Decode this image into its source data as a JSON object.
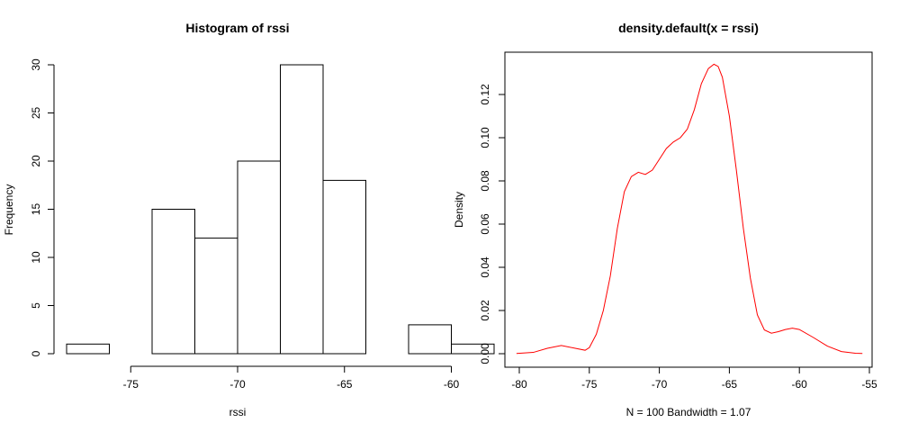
{
  "chart_data": [
    {
      "type": "histogram",
      "title": "Histogram of rssi",
      "xlabel": "rssi",
      "ylabel": "Frequency",
      "xlim": [
        -78,
        -62
      ],
      "ylim": [
        0,
        30
      ],
      "x_ticks": [
        -75,
        -70,
        -65,
        -60
      ],
      "y_ticks": [
        0,
        5,
        10,
        15,
        20,
        25,
        30
      ],
      "bins": [
        {
          "from": -78,
          "to": -76,
          "count": 1
        },
        {
          "from": -76,
          "to": -74,
          "count": 0
        },
        {
          "from": -74,
          "to": -72,
          "count": 15
        },
        {
          "from": -72,
          "to": -70,
          "count": 12
        },
        {
          "from": -70,
          "to": -68,
          "count": 20
        },
        {
          "from": -68,
          "to": -66,
          "count": 30
        },
        {
          "from": -66,
          "to": -64,
          "count": 18
        },
        {
          "from": -64,
          "to": -62,
          "count": 0
        },
        {
          "from": -62,
          "to": -60,
          "count": 3
        },
        {
          "from": -60,
          "to": -58,
          "count": 1
        }
      ],
      "bar_fill": "#ffffff",
      "bar_stroke": "#000000"
    },
    {
      "type": "line",
      "title": "density.default(x = rssi)",
      "xlabel": "N = 100   Bandwidth = 1.07",
      "ylabel": "Density",
      "xlim": [
        -80,
        -55
      ],
      "ylim": [
        0,
        0.13
      ],
      "x_ticks": [
        -80,
        -75,
        -70,
        -65,
        -60,
        -55
      ],
      "y_ticks": [
        0.0,
        0.02,
        0.04,
        0.06,
        0.08,
        0.1,
        0.12
      ],
      "y_tick_labels": [
        "0.00",
        "0.02",
        "0.04",
        "0.06",
        "0.08",
        "0.10",
        "0.12"
      ],
      "grid": false,
      "color": "#ff0000",
      "x": [
        -80.2,
        -79,
        -78,
        -77,
        -76,
        -75.3,
        -75,
        -74.5,
        -74,
        -73.5,
        -73,
        -72.5,
        -72,
        -71.5,
        -71,
        -70.5,
        -70,
        -69.5,
        -69,
        -68.5,
        -68,
        -67.5,
        -67,
        -66.5,
        -66.1,
        -65.8,
        -65.5,
        -65,
        -64.5,
        -64,
        -63.5,
        -63,
        -62.5,
        -62,
        -61.5,
        -61,
        -60.5,
        -60,
        -59,
        -58,
        -57,
        -56,
        -55.5
      ],
      "y": [
        0.0001,
        0.0006,
        0.0025,
        0.0038,
        0.0025,
        0.0016,
        0.0028,
        0.009,
        0.02,
        0.036,
        0.058,
        0.075,
        0.082,
        0.084,
        0.083,
        0.085,
        0.09,
        0.095,
        0.098,
        0.1,
        0.104,
        0.113,
        0.125,
        0.132,
        0.134,
        0.133,
        0.128,
        0.11,
        0.085,
        0.058,
        0.035,
        0.018,
        0.011,
        0.0095,
        0.0102,
        0.0112,
        0.0118,
        0.0112,
        0.0075,
        0.0035,
        0.001,
        0.0002,
        0.0001
      ]
    }
  ]
}
